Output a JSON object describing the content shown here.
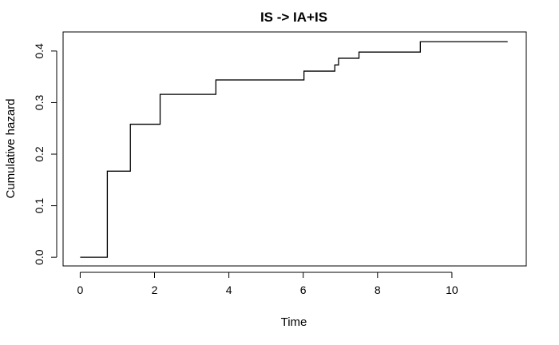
{
  "chart_data": {
    "type": "line",
    "step": true,
    "title": "IS -> IA+IS",
    "xlabel": "Time",
    "ylabel": "Cumulative hazard",
    "xlim": [
      -0.46,
      12.0
    ],
    "ylim": [
      -0.0168,
      0.437
    ],
    "xticks": [
      0,
      2,
      4,
      6,
      8,
      10
    ],
    "yticks": [
      0.0,
      0.1,
      0.2,
      0.3,
      0.4
    ],
    "xtick_labels": [
      "0",
      "2",
      "4",
      "6",
      "8",
      "10"
    ],
    "ytick_labels": [
      "0.0",
      "0.1",
      "0.2",
      "0.3",
      "0.4"
    ],
    "grid": false,
    "series": [
      {
        "x": [
          0.0,
          0.73,
          1.35,
          2.15,
          3.65,
          6.02,
          6.85,
          6.95,
          7.5,
          9.15,
          11.5
        ],
        "y": [
          0.0,
          0.167,
          0.258,
          0.316,
          0.344,
          0.361,
          0.373,
          0.386,
          0.398,
          0.418,
          0.418
        ]
      }
    ],
    "line_color": "#000000"
  }
}
